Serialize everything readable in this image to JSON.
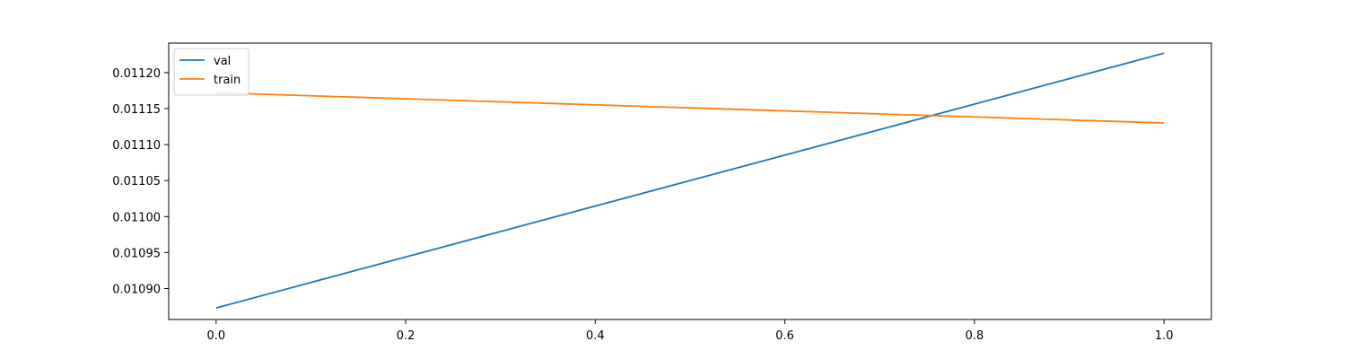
{
  "chart_data": {
    "type": "line",
    "title": "",
    "xlabel": "",
    "ylabel": "",
    "xlim": [
      -0.05,
      1.05
    ],
    "ylim": [
      0.010857,
      0.011241
    ],
    "x_ticks": [
      0.0,
      0.2,
      0.4,
      0.6,
      0.8,
      1.0
    ],
    "x_tick_labels": [
      "0.0",
      "0.2",
      "0.4",
      "0.6",
      "0.8",
      "1.0"
    ],
    "y_ticks": [
      0.0109,
      0.01095,
      0.011,
      0.01105,
      0.0111,
      0.01115,
      0.0112
    ],
    "y_tick_labels": [
      "0.01090",
      "0.01095",
      "0.01100",
      "0.01105",
      "0.01110",
      "0.01115",
      "0.01120"
    ],
    "grid": false,
    "legend_position": "top-left",
    "series": [
      {
        "name": "val",
        "color": "#1f77b4",
        "x": [
          0,
          1
        ],
        "y": [
          0.010873,
          0.011227
        ]
      },
      {
        "name": "train",
        "color": "#ff7f0e",
        "x": [
          0,
          1
        ],
        "y": [
          0.011172,
          0.01113
        ]
      }
    ]
  }
}
